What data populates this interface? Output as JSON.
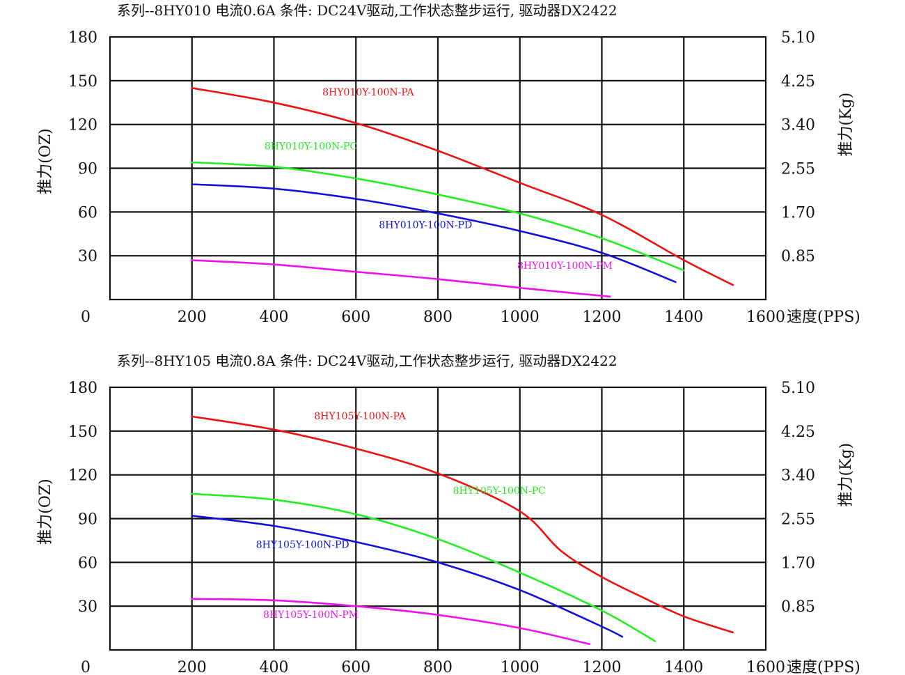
{
  "chart_data": [
    {
      "type": "line",
      "title": "系列--8HY010 电流0.6A    条件: DC24V驱动,工作状态整步运行, 驱动器DX2422",
      "xlabel": "速度(PPS)",
      "ylabel": "推力(OZ)",
      "ylabel_right": "推力(Kg)",
      "xlim": [
        0,
        1600
      ],
      "ylim": [
        0,
        180
      ],
      "x_ticks": [
        "0",
        "200",
        "400",
        "600",
        "800",
        "1000",
        "1200",
        "1400",
        "1600"
      ],
      "y_ticks": [
        "30",
        "60",
        "90",
        "120",
        "150",
        "180"
      ],
      "y_ticks_right": [
        "0.85",
        "1.70",
        "2.55",
        "3.40",
        "4.25",
        "5.10"
      ],
      "grid": true,
      "series": [
        {
          "name": "8HY010Y-100N-PA",
          "color": "#ee1111",
          "x": [
            200,
            400,
            600,
            800,
            1000,
            1200,
            1400,
            1520
          ],
          "y": [
            145,
            135,
            121,
            102,
            80,
            58,
            27,
            10
          ],
          "label_at": [
            630,
            140
          ]
        },
        {
          "name": "8HY010Y-100N-PC",
          "color": "#22ee22",
          "x": [
            200,
            400,
            600,
            800,
            1000,
            1200,
            1400
          ],
          "y": [
            94,
            91,
            83,
            72,
            59,
            42,
            20
          ],
          "label_at": [
            490,
            103
          ]
        },
        {
          "name": "8HY010Y-100N-PD",
          "color": "#1111dd",
          "x": [
            200,
            400,
            600,
            800,
            1000,
            1200,
            1380
          ],
          "y": [
            79,
            76,
            69,
            59,
            47,
            32,
            12
          ],
          "label_at": [
            770,
            49
          ]
        },
        {
          "name": "8HY010Y-100N-PM",
          "color": "#ee11ee",
          "x": [
            200,
            400,
            600,
            800,
            1000,
            1220
          ],
          "y": [
            27,
            24,
            19,
            14,
            8,
            2
          ],
          "label_at": [
            1110,
            21
          ]
        }
      ]
    },
    {
      "type": "line",
      "title": "系列--8HY105 电流0.8A    条件: DC24V驱动,工作状态整步运行, 驱动器DX2422",
      "xlabel": "速度(PPS)",
      "ylabel": "推力(OZ)",
      "ylabel_right": "推力(Kg)",
      "xlim": [
        0,
        1600
      ],
      "ylim": [
        0,
        180
      ],
      "x_ticks": [
        "0",
        "200",
        "400",
        "600",
        "800",
        "1000",
        "1200",
        "1400",
        "1600"
      ],
      "y_ticks": [
        "30",
        "60",
        "90",
        "120",
        "150",
        "180"
      ],
      "y_ticks_right": [
        "0.85",
        "1.70",
        "2.55",
        "3.40",
        "4.25",
        "5.10"
      ],
      "grid": true,
      "series": [
        {
          "name": "8HY105Y-100N-PA",
          "color": "#ee1111",
          "x": [
            200,
            400,
            600,
            800,
            1000,
            1100,
            1200,
            1300,
            1400,
            1520
          ],
          "y": [
            160,
            151,
            138,
            121,
            95,
            68,
            50,
            36,
            23,
            12
          ],
          "label_at": [
            610,
            158
          ]
        },
        {
          "name": "8HY105Y-100N-PC",
          "color": "#22ee22",
          "x": [
            200,
            400,
            600,
            800,
            1000,
            1200,
            1330
          ],
          "y": [
            107,
            103,
            93,
            76,
            53,
            27,
            6
          ],
          "label_at": [
            950,
            107
          ]
        },
        {
          "name": "8HY105Y-100N-PD",
          "color": "#1111dd",
          "x": [
            200,
            400,
            600,
            800,
            1000,
            1200,
            1250
          ],
          "y": [
            92,
            85,
            74,
            60,
            41,
            16,
            9
          ],
          "label_at": [
            470,
            70
          ]
        },
        {
          "name": "8HY105Y-100N-PM",
          "color": "#ee11ee",
          "x": [
            200,
            400,
            600,
            800,
            1000,
            1170
          ],
          "y": [
            35,
            34,
            30,
            24,
            15,
            4
          ],
          "label_at": [
            490,
            22
          ]
        }
      ]
    }
  ]
}
